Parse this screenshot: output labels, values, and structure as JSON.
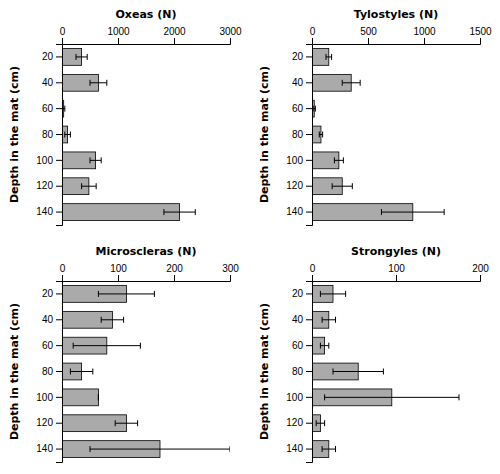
{
  "chart_data": [
    {
      "type": "bar",
      "orientation": "horizontal",
      "xlabel": "Oxeas (N)",
      "ylabel": "Depth in the mat (cm)",
      "categories": [
        "20",
        "40",
        "60",
        "80",
        "100",
        "120",
        "140"
      ],
      "values": [
        350,
        650,
        30,
        100,
        600,
        480,
        2100
      ],
      "errors": [
        100,
        150,
        20,
        50,
        100,
        130,
        280
      ],
      "color": "#aaaaaa",
      "xlim": [
        0,
        3000
      ],
      "xticks": [
        0,
        1000,
        2000,
        3000
      ]
    },
    {
      "type": "bar",
      "orientation": "horizontal",
      "xlabel": "Tylostyles (N)",
      "ylabel": "Depth in the mat (cm)",
      "categories": [
        "20",
        "40",
        "60",
        "80",
        "100",
        "120",
        "140"
      ],
      "values": [
        150,
        350,
        20,
        80,
        240,
        270,
        900
      ],
      "errors": [
        25,
        80,
        10,
        15,
        40,
        90,
        280
      ],
      "color": "#aaaaaa",
      "xlim": [
        0,
        1500
      ],
      "xticks": [
        0,
        500,
        1000,
        1500
      ]
    },
    {
      "type": "bar",
      "orientation": "horizontal",
      "xlabel": "Microscleras (N)",
      "ylabel": "Depth in the mat (cm)",
      "categories": [
        "20",
        "40",
        "60",
        "80",
        "100",
        "120",
        "140"
      ],
      "values": [
        115,
        90,
        80,
        35,
        65,
        115,
        175
      ],
      "errors": [
        50,
        20,
        60,
        20,
        0,
        20,
        125
      ],
      "color": "#aaaaaa",
      "xlim": [
        0,
        300
      ],
      "xticks": [
        0,
        100,
        200,
        300
      ]
    },
    {
      "type": "bar",
      "orientation": "horizontal",
      "xlabel": "Strongyles (N)",
      "ylabel": "Depth in the mat (cm)",
      "categories": [
        "20",
        "40",
        "60",
        "80",
        "100",
        "120",
        "140"
      ],
      "values": [
        25,
        20,
        15,
        55,
        95,
        10,
        20
      ],
      "errors": [
        15,
        8,
        5,
        30,
        80,
        5,
        8
      ],
      "color": "#aaaaaa",
      "xlim": [
        0,
        200
      ],
      "xticks": [
        0,
        100,
        200
      ]
    }
  ]
}
